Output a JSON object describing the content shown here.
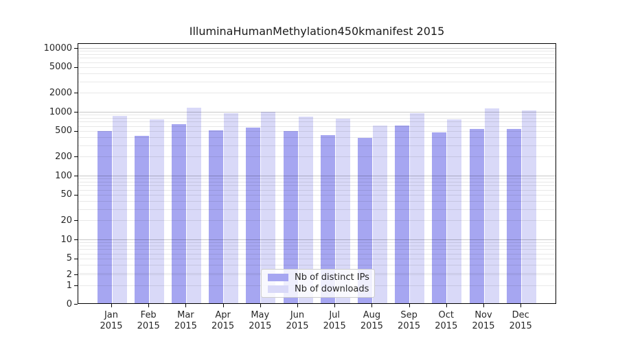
{
  "title": "IlluminaHumanMethylation450kmanifest 2015",
  "colors": {
    "distinct_ips_bar": "#a6a6f1",
    "downloads_bar": "#d9d9f8",
    "axis_frame": "#000000",
    "major_gridline": "rgba(0,0,0,0.22)",
    "minor_gridline": "rgba(0,0,0,0.09)",
    "text": "#262626"
  },
  "chart_data": {
    "type": "bar",
    "title": "IlluminaHumanMethylation450kmanifest 2015",
    "xlabel": "",
    "ylabel": "",
    "yscale": "symlog",
    "ylim": [
      0,
      12000
    ],
    "grid": true,
    "legend_position": "lower center",
    "categories": [
      "Jan 2015",
      "Feb 2015",
      "Mar 2015",
      "Apr 2015",
      "May 2015",
      "Jun 2015",
      "Jul 2015",
      "Aug 2015",
      "Sep 2015",
      "Oct 2015",
      "Nov 2015",
      "Dec 2015"
    ],
    "series": [
      {
        "name": "Nb of distinct IPs",
        "color": "#a6a6f1",
        "values": [
          500,
          420,
          640,
          515,
          570,
          505,
          430,
          390,
          610,
          480,
          540,
          535
        ]
      },
      {
        "name": "Nb of downloads",
        "color": "#d9d9f8",
        "values": [
          870,
          760,
          1160,
          960,
          1000,
          840,
          780,
          610,
          950,
          770,
          1140,
          1040
        ]
      }
    ],
    "ytick_labels": [
      "10000",
      "5000",
      "2000",
      "1000",
      "500",
      "200",
      "100",
      "50",
      "20",
      "10",
      "5",
      "2",
      "1",
      "0"
    ],
    "ytick_values": [
      10000,
      5000,
      2000,
      1000,
      500,
      200,
      100,
      50,
      20,
      10,
      5,
      2,
      1,
      0
    ]
  },
  "legend": {
    "items": [
      {
        "label": "Nb of distinct IPs",
        "color": "#a6a6f1"
      },
      {
        "label": "Nb of downloads",
        "color": "#d9d9f8"
      }
    ]
  }
}
